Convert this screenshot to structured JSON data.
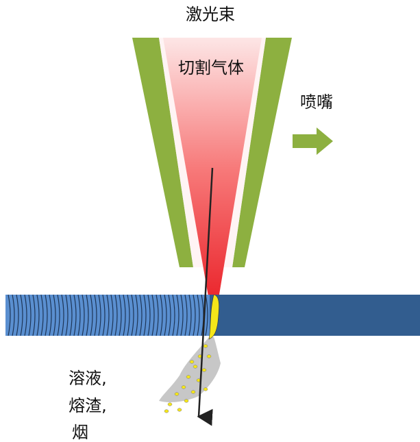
{
  "labels": {
    "laser_beam": "激光束",
    "cutting_gas": "切割气体",
    "nozzle": "喷嘴",
    "ejecta": [
      "溶液,",
      "熔渣,",
      "烟"
    ]
  }
}
